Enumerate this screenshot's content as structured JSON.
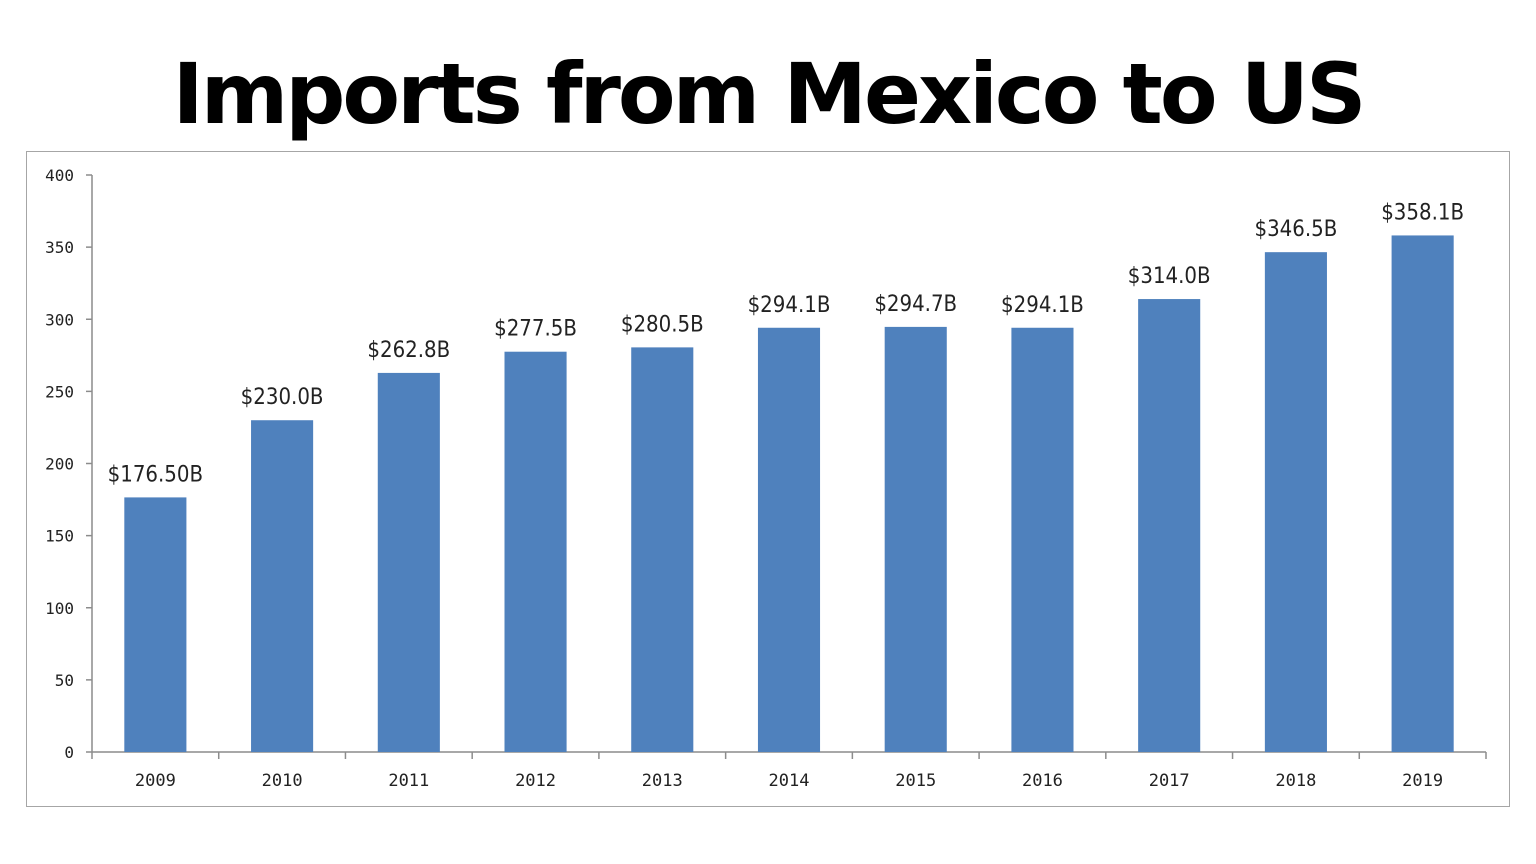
{
  "chart_data": {
    "type": "bar",
    "title": "Imports from Mexico to US",
    "categories": [
      "2009",
      "2010",
      "2011",
      "2012",
      "2013",
      "2014",
      "2015",
      "2016",
      "2017",
      "2018",
      "2019"
    ],
    "values": [
      176.5,
      230.0,
      262.8,
      277.5,
      280.5,
      294.1,
      294.7,
      294.1,
      314.0,
      346.5,
      358.1
    ],
    "data_labels": [
      "$176.50B",
      "$230.0B",
      "$262.8B",
      "$277.5B",
      "$280.5B",
      "$294.1B",
      "$294.7B",
      "$294.1B",
      "$314.0B",
      "$346.5B",
      "$358.1B"
    ],
    "yticks": [
      0,
      50,
      100,
      150,
      200,
      250,
      300,
      350,
      400
    ],
    "ylim": [
      0,
      400
    ],
    "xlabel": "",
    "ylabel": "",
    "grid": false,
    "legend": "none",
    "bar_color": "#4f81bd"
  }
}
